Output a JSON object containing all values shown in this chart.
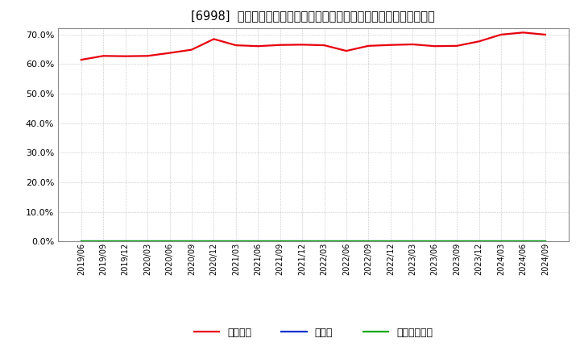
{
  "title": "[6998]  自己資本、のれん、繰延税金資産の総資産に対する比率の推移",
  "x_labels": [
    "2019/06",
    "2019/09",
    "2019/12",
    "2020/03",
    "2020/06",
    "2020/09",
    "2020/12",
    "2021/03",
    "2021/06",
    "2021/09",
    "2021/12",
    "2022/03",
    "2022/06",
    "2022/09",
    "2022/12",
    "2023/03",
    "2023/06",
    "2023/09",
    "2023/12",
    "2024/03",
    "2024/06",
    "2024/09"
  ],
  "equity_ratio": [
    0.614,
    0.627,
    0.626,
    0.627,
    0.637,
    0.648,
    0.684,
    0.663,
    0.66,
    0.664,
    0.665,
    0.663,
    0.644,
    0.661,
    0.664,
    0.666,
    0.66,
    0.661,
    0.676,
    0.699,
    0.706,
    0.699
  ],
  "goodwill_ratio": [
    0.0,
    0.0,
    0.0,
    0.0,
    0.0,
    0.0,
    0.0,
    0.0,
    0.0,
    0.0,
    0.0,
    0.0,
    0.0,
    0.0,
    0.0,
    0.0,
    0.0,
    0.0,
    0.0,
    0.0,
    0.0,
    0.0
  ],
  "deferred_tax_ratio": [
    0.0,
    0.0,
    0.0,
    0.0,
    0.0,
    0.0,
    0.0,
    0.0,
    0.0,
    0.0,
    0.0,
    0.0,
    0.0,
    0.0,
    0.0,
    0.0,
    0.0,
    0.0,
    0.0,
    0.0,
    0.0,
    0.0
  ],
  "equity_color": "#e8000d",
  "goodwill_color": "#0033cc",
  "deferred_tax_color": "#00aa00",
  "ylim_min": 0.0,
  "ylim_max": 0.72,
  "yticks": [
    0.0,
    0.1,
    0.2,
    0.3,
    0.4,
    0.5,
    0.6,
    0.7
  ],
  "legend_labels": [
    "自己資本",
    "のれん",
    "繰延税金資産"
  ],
  "background_color": "#ffffff",
  "plot_bg_color": "#ffffff",
  "grid_color": "#aaaaaa",
  "title_fontsize": 10.5,
  "line_width": 1.6
}
